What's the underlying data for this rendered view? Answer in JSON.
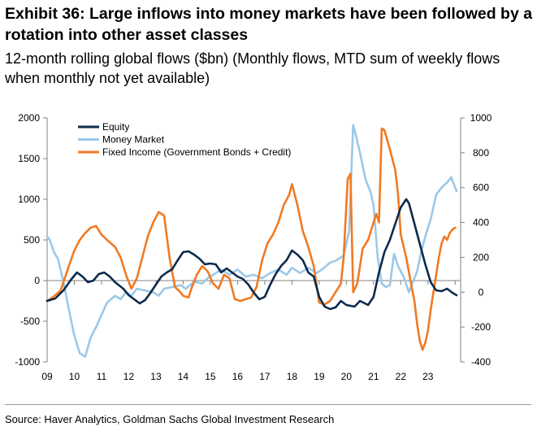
{
  "title": "Exhibit 36:  Large inflows into money markets have been followed by a rotation into other asset classes",
  "subtitle": "12-month rolling global flows ($bn) (Monthly flows, MTD sum of weekly flows when monthly not yet available)",
  "source": "Source: Haver Analytics, Goldman Sachs Global Investment Research",
  "colors": {
    "equity": "#0c2a4d",
    "money_market": "#9cc8e8",
    "fixed_income": "#f07a23",
    "axis": "#808080"
  },
  "chart_data": {
    "type": "line",
    "x_tick_labels": [
      "09",
      "10",
      "11",
      "12",
      "13",
      "14",
      "15",
      "16",
      "17",
      "18",
      "19",
      "20",
      "21",
      "22",
      "23"
    ],
    "xlim": [
      2009.0,
      2024.2
    ],
    "left_axis": {
      "ylim": [
        -1000,
        2000
      ],
      "ticks": [
        "2000",
        "1500",
        "1000",
        "500",
        "0",
        "-500",
        "-1000"
      ]
    },
    "right_axis": {
      "ylim": [
        -400,
        1000
      ],
      "ticks": [
        "1000",
        "800",
        "600",
        "400",
        "200",
        "0",
        "-200",
        "-400"
      ]
    },
    "grid": false,
    "legend_position": "top-left",
    "series": [
      {
        "name": "Equity",
        "axis": "left",
        "color": "#0c2a4d",
        "points": [
          [
            2009.0,
            -250
          ],
          [
            2009.3,
            -220
          ],
          [
            2009.6,
            -120
          ],
          [
            2009.9,
            20
          ],
          [
            2010.1,
            100
          ],
          [
            2010.3,
            50
          ],
          [
            2010.5,
            -20
          ],
          [
            2010.7,
            0
          ],
          [
            2010.9,
            80
          ],
          [
            2011.1,
            100
          ],
          [
            2011.3,
            50
          ],
          [
            2011.5,
            -20
          ],
          [
            2011.8,
            -100
          ],
          [
            2012.0,
            -180
          ],
          [
            2012.2,
            -230
          ],
          [
            2012.4,
            -280
          ],
          [
            2012.6,
            -240
          ],
          [
            2012.8,
            -150
          ],
          [
            2013.0,
            -50
          ],
          [
            2013.2,
            50
          ],
          [
            2013.4,
            100
          ],
          [
            2013.6,
            140
          ],
          [
            2013.8,
            250
          ],
          [
            2014.0,
            350
          ],
          [
            2014.2,
            360
          ],
          [
            2014.4,
            320
          ],
          [
            2014.6,
            270
          ],
          [
            2014.8,
            200
          ],
          [
            2015.0,
            210
          ],
          [
            2015.2,
            200
          ],
          [
            2015.4,
            100
          ],
          [
            2015.6,
            150
          ],
          [
            2015.8,
            100
          ],
          [
            2016.0,
            50
          ],
          [
            2016.2,
            20
          ],
          [
            2016.4,
            -50
          ],
          [
            2016.6,
            -150
          ],
          [
            2016.8,
            -230
          ],
          [
            2017.0,
            -200
          ],
          [
            2017.2,
            -50
          ],
          [
            2017.4,
            80
          ],
          [
            2017.6,
            180
          ],
          [
            2017.8,
            250
          ],
          [
            2018.0,
            370
          ],
          [
            2018.2,
            320
          ],
          [
            2018.4,
            250
          ],
          [
            2018.6,
            100
          ],
          [
            2018.8,
            50
          ],
          [
            2019.0,
            -200
          ],
          [
            2019.2,
            -320
          ],
          [
            2019.4,
            -350
          ],
          [
            2019.6,
            -330
          ],
          [
            2019.8,
            -250
          ],
          [
            2020.0,
            -300
          ],
          [
            2020.3,
            -320
          ],
          [
            2020.5,
            -250
          ],
          [
            2020.8,
            -300
          ],
          [
            2021.0,
            -200
          ],
          [
            2021.2,
            100
          ],
          [
            2021.4,
            350
          ],
          [
            2021.6,
            500
          ],
          [
            2021.8,
            700
          ],
          [
            2022.0,
            900
          ],
          [
            2022.2,
            1000
          ],
          [
            2022.3,
            950
          ],
          [
            2022.5,
            700
          ],
          [
            2022.7,
            450
          ],
          [
            2022.9,
            200
          ],
          [
            2023.1,
            -20
          ],
          [
            2023.3,
            -120
          ],
          [
            2023.5,
            -130
          ],
          [
            2023.7,
            -100
          ],
          [
            2023.9,
            -150
          ],
          [
            2024.05,
            -180
          ]
        ]
      },
      {
        "name": "Money Market",
        "axis": "right",
        "color": "#9cc8e8",
        "points": [
          [
            2009.0,
            320
          ],
          [
            2009.1,
            300
          ],
          [
            2009.25,
            230
          ],
          [
            2009.4,
            190
          ],
          [
            2009.6,
            60
          ],
          [
            2009.8,
            -100
          ],
          [
            2010.0,
            -250
          ],
          [
            2010.2,
            -350
          ],
          [
            2010.4,
            -370
          ],
          [
            2010.6,
            -260
          ],
          [
            2010.8,
            -200
          ],
          [
            2011.0,
            -130
          ],
          [
            2011.2,
            -60
          ],
          [
            2011.5,
            -20
          ],
          [
            2011.7,
            -40
          ],
          [
            2011.9,
            0
          ],
          [
            2012.1,
            -20
          ],
          [
            2012.3,
            20
          ],
          [
            2012.6,
            10
          ],
          [
            2012.9,
            0
          ],
          [
            2013.1,
            -20
          ],
          [
            2013.3,
            20
          ],
          [
            2013.6,
            30
          ],
          [
            2013.9,
            40
          ],
          [
            2014.1,
            20
          ],
          [
            2014.4,
            60
          ],
          [
            2014.7,
            50
          ],
          [
            2014.9,
            80
          ],
          [
            2015.1,
            100
          ],
          [
            2015.4,
            130
          ],
          [
            2015.7,
            100
          ],
          [
            2016.0,
            130
          ],
          [
            2016.3,
            90
          ],
          [
            2016.6,
            100
          ],
          [
            2016.9,
            80
          ],
          [
            2017.2,
            110
          ],
          [
            2017.5,
            130
          ],
          [
            2017.8,
            100
          ],
          [
            2018.0,
            140
          ],
          [
            2018.3,
            110
          ],
          [
            2018.6,
            140
          ],
          [
            2018.9,
            110
          ],
          [
            2019.1,
            130
          ],
          [
            2019.4,
            170
          ],
          [
            2019.6,
            180
          ],
          [
            2019.9,
            210
          ],
          [
            2020.1,
            350
          ],
          [
            2020.25,
            960
          ],
          [
            2020.35,
            900
          ],
          [
            2020.5,
            800
          ],
          [
            2020.7,
            650
          ],
          [
            2020.9,
            570
          ],
          [
            2021.0,
            500
          ],
          [
            2021.15,
            200
          ],
          [
            2021.3,
            50
          ],
          [
            2021.45,
            30
          ],
          [
            2021.6,
            40
          ],
          [
            2021.75,
            220
          ],
          [
            2021.9,
            150
          ],
          [
            2022.1,
            90
          ],
          [
            2022.3,
            0
          ],
          [
            2022.45,
            60
          ],
          [
            2022.6,
            120
          ],
          [
            2022.75,
            230
          ],
          [
            2022.9,
            320
          ],
          [
            2023.1,
            420
          ],
          [
            2023.3,
            560
          ],
          [
            2023.5,
            600
          ],
          [
            2023.7,
            630
          ],
          [
            2023.85,
            660
          ],
          [
            2023.95,
            620
          ],
          [
            2024.05,
            580
          ]
        ]
      },
      {
        "name": "Fixed Income (Government Bonds + Credit)",
        "axis": "right",
        "color": "#f07a23",
        "points": [
          [
            2009.0,
            -50
          ],
          [
            2009.2,
            -30
          ],
          [
            2009.5,
            10
          ],
          [
            2009.8,
            150
          ],
          [
            2010.0,
            240
          ],
          [
            2010.2,
            300
          ],
          [
            2010.4,
            340
          ],
          [
            2010.6,
            370
          ],
          [
            2010.8,
            380
          ],
          [
            2011.0,
            330
          ],
          [
            2011.2,
            300
          ],
          [
            2011.5,
            260
          ],
          [
            2011.7,
            200
          ],
          [
            2011.9,
            100
          ],
          [
            2012.1,
            20
          ],
          [
            2012.3,
            80
          ],
          [
            2012.5,
            200
          ],
          [
            2012.7,
            320
          ],
          [
            2012.9,
            400
          ],
          [
            2013.1,
            460
          ],
          [
            2013.3,
            440
          ],
          [
            2013.5,
            200
          ],
          [
            2013.7,
            30
          ],
          [
            2013.9,
            0
          ],
          [
            2014.0,
            -20
          ],
          [
            2014.2,
            -30
          ],
          [
            2014.3,
            20
          ],
          [
            2014.5,
            100
          ],
          [
            2014.7,
            150
          ],
          [
            2014.9,
            120
          ],
          [
            2015.1,
            50
          ],
          [
            2015.3,
            20
          ],
          [
            2015.5,
            100
          ],
          [
            2015.7,
            80
          ],
          [
            2015.9,
            -40
          ],
          [
            2016.1,
            -50
          ],
          [
            2016.3,
            -40
          ],
          [
            2016.5,
            -30
          ],
          [
            2016.7,
            30
          ],
          [
            2016.9,
            180
          ],
          [
            2017.1,
            280
          ],
          [
            2017.3,
            330
          ],
          [
            2017.5,
            400
          ],
          [
            2017.7,
            500
          ],
          [
            2017.9,
            560
          ],
          [
            2018.0,
            620
          ],
          [
            2018.2,
            500
          ],
          [
            2018.4,
            350
          ],
          [
            2018.6,
            260
          ],
          [
            2018.8,
            150
          ],
          [
            2019.0,
            -60
          ],
          [
            2019.2,
            -70
          ],
          [
            2019.4,
            -50
          ],
          [
            2019.6,
            0
          ],
          [
            2019.8,
            50
          ],
          [
            2019.9,
            200
          ],
          [
            2020.05,
            650
          ],
          [
            2020.15,
            680
          ],
          [
            2020.25,
            0
          ],
          [
            2020.4,
            50
          ],
          [
            2020.6,
            250
          ],
          [
            2020.8,
            300
          ],
          [
            2021.0,
            400
          ],
          [
            2021.1,
            450
          ],
          [
            2021.2,
            400
          ],
          [
            2021.3,
            940
          ],
          [
            2021.4,
            930
          ],
          [
            2021.6,
            820
          ],
          [
            2021.8,
            700
          ],
          [
            2021.9,
            560
          ],
          [
            2022.0,
            330
          ],
          [
            2022.2,
            200
          ],
          [
            2022.4,
            30
          ],
          [
            2022.5,
            -50
          ],
          [
            2022.6,
            -180
          ],
          [
            2022.7,
            -280
          ],
          [
            2022.8,
            -330
          ],
          [
            2022.9,
            -290
          ],
          [
            2023.0,
            -220
          ],
          [
            2023.1,
            -100
          ],
          [
            2023.2,
            0
          ],
          [
            2023.3,
            100
          ],
          [
            2023.4,
            200
          ],
          [
            2023.5,
            280
          ],
          [
            2023.6,
            320
          ],
          [
            2023.7,
            300
          ],
          [
            2023.8,
            340
          ],
          [
            2023.9,
            360
          ],
          [
            2024.0,
            370
          ]
        ]
      }
    ]
  }
}
